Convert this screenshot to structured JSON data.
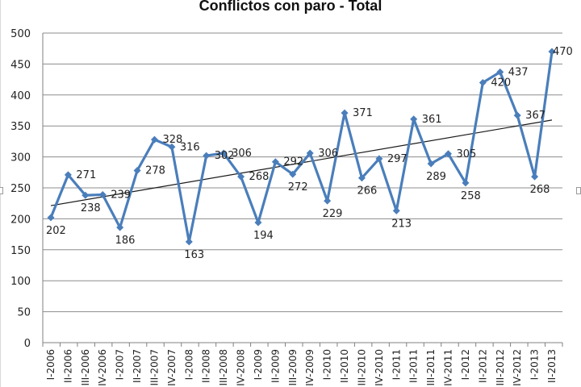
{
  "chart_data": {
    "type": "line",
    "title": "Conflictos con paro - Total",
    "ylim": [
      0,
      500
    ],
    "yticks": [
      0,
      50,
      100,
      150,
      200,
      250,
      300,
      350,
      400,
      450,
      500
    ],
    "grid": true,
    "trendline": true,
    "categories": [
      "I-2006",
      "II-2006",
      "III-2006",
      "IV-2006",
      "I-2007",
      "II-2007",
      "III-2007",
      "IV-2007",
      "I-2008",
      "II-2008",
      "III-2008",
      "IV-2008",
      "I-2009",
      "II-2009",
      "III-2009",
      "IV-2009",
      "I-2010",
      "II-2010",
      "III-2010",
      "IV-2010",
      "I-2011",
      "II-2011",
      "III-2011",
      "IV-2011",
      "I-2012",
      "II-2012",
      "III-2012",
      "IV-2012",
      "I-2013",
      "II-2013"
    ],
    "series": [
      {
        "values": [
          202,
          271,
          238,
          239,
          186,
          278,
          328,
          316,
          163,
          302,
          306,
          268,
          194,
          292,
          272,
          306,
          229,
          371,
          266,
          297,
          213,
          361,
          289,
          305,
          258,
          420,
          437,
          367,
          268,
          470
        ]
      }
    ],
    "colors": {
      "series": "#4a7ebb",
      "trend": "#1a1a1a",
      "grid": "#8c8c8c"
    }
  }
}
